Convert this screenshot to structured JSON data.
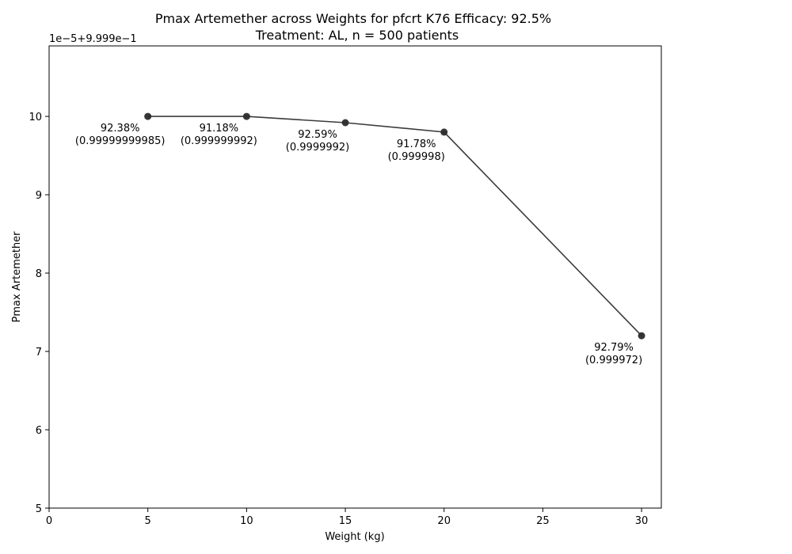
{
  "chart_data": {
    "type": "line",
    "title": "Pmax Artemether across Weights for pfcrt K76 Efficacy: 92.5%",
    "subtitle": "Treatment: AL, n = 500 patients",
    "xlabel": "Weight (kg)",
    "ylabel": "Pmax Artemether",
    "y_offset_text": "1e−5+9.999e−1",
    "xlim": [
      0,
      31
    ],
    "ylim": [
      5,
      10.9
    ],
    "x_ticks": [
      0,
      5,
      10,
      15,
      20,
      25,
      30
    ],
    "x_tick_labels": [
      "0",
      "5",
      "10",
      "15",
      "20",
      "25",
      "30"
    ],
    "y_ticks": [
      5,
      6,
      7,
      8,
      9,
      10
    ],
    "y_tick_labels": [
      "5",
      "6",
      "7",
      "8",
      "9",
      "10"
    ],
    "grid": false,
    "legend": "none",
    "line_color": "#3b3b3b",
    "x": [
      5,
      10,
      15,
      20,
      30
    ],
    "y_scaled": [
      10.0,
      10.0,
      9.92,
      9.8,
      7.2
    ],
    "annotations": [
      {
        "line1": "92.38%",
        "line2": "(0.99999999985)"
      },
      {
        "line1": "91.18%",
        "line2": "(0.999999992)"
      },
      {
        "line1": "92.59%",
        "line2": "(0.9999992)"
      },
      {
        "line1": "91.78%",
        "line2": "(0.999998)"
      },
      {
        "line1": "92.79%",
        "line2": "(0.999972)"
      }
    ]
  }
}
